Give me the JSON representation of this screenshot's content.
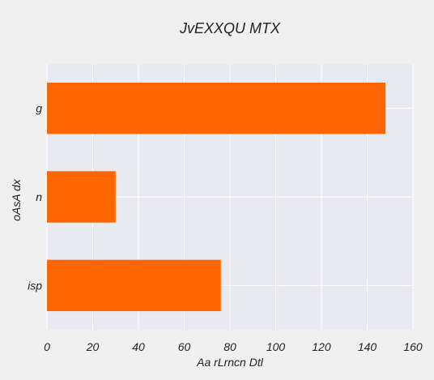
{
  "chart_data": {
    "type": "bar",
    "orientation": "horizontal",
    "title": "JvEXXQU MTX",
    "xlabel": "Aa rLrncn Dtl",
    "ylabel": "oAsA dx",
    "categories": [
      "g",
      "n",
      "isp"
    ],
    "values": [
      148,
      30,
      76
    ],
    "xlim": [
      0,
      160
    ],
    "xticks": [
      0,
      20,
      40,
      60,
      80,
      100,
      120,
      140,
      160
    ],
    "grid": true,
    "colors": {
      "bar": "#ff6600",
      "plot_background": "#e9e9f1",
      "figure_background": "#f0f0f0",
      "grid": "#ffffff"
    }
  }
}
